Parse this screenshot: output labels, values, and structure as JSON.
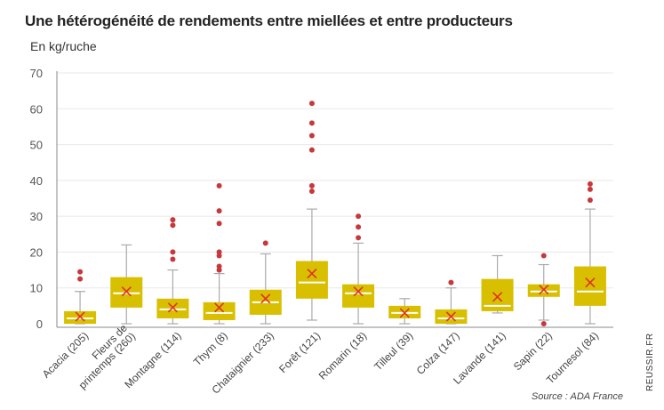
{
  "title": "Une hétérogénéité de rendements entre miellées et entre producteurs",
  "unit_label": "En kg/ruche",
  "source": "Source : ADA France",
  "brand": "REUSSIR.FR",
  "colors": {
    "box": "#d8bf00",
    "median": "#ffffff",
    "mean": "#e0302a",
    "outlier": "#c8373a",
    "whisker": "#aaaaaa",
    "grid": "#e8e8e8",
    "axis": "#888888"
  },
  "chart_data": {
    "type": "boxplot",
    "title": "Une hétérogénéité de rendements entre miellées et entre producteurs",
    "ylabel": "En kg/ruche",
    "ylim": [
      0,
      70
    ],
    "yticks": [
      0,
      10,
      20,
      30,
      40,
      50,
      60,
      70
    ],
    "grid": true,
    "categories": [
      {
        "label": "Acacia (205)",
        "min": 0,
        "q1": 0,
        "median": 1.5,
        "q3": 3.5,
        "max": 9,
        "mean": 2,
        "outliers": [
          12.5,
          14.5
        ]
      },
      {
        "label": "Fleurs de printemps (260)",
        "min": 0,
        "q1": 4.5,
        "median": 8.5,
        "q3": 13,
        "max": 22,
        "mean": 9,
        "outliers": []
      },
      {
        "label": "Montagne (114)",
        "min": 0,
        "q1": 1.5,
        "median": 4,
        "q3": 7,
        "max": 15,
        "mean": 4.5,
        "outliers": [
          18,
          20,
          27.5,
          29
        ]
      },
      {
        "label": "Thym (8)",
        "min": 0,
        "q1": 1,
        "median": 3,
        "q3": 6,
        "max": 14,
        "mean": 4.5,
        "outliers": [
          15,
          16,
          19,
          20,
          28,
          31.5,
          38.5
        ]
      },
      {
        "label": "Chataignier (233)",
        "min": 0,
        "q1": 2.5,
        "median": 6,
        "q3": 9.5,
        "max": 19.5,
        "mean": 7,
        "outliers": [
          22.5
        ]
      },
      {
        "label": "Forêt (121)",
        "min": 1,
        "q1": 7,
        "median": 11.5,
        "q3": 17.5,
        "max": 32,
        "mean": 14,
        "outliers": [
          37,
          38.5,
          48.5,
          52.5,
          56,
          61.5
        ]
      },
      {
        "label": "Romarin (18)",
        "min": 0,
        "q1": 4.5,
        "median": 8.5,
        "q3": 11,
        "max": 22.5,
        "mean": 9,
        "outliers": [
          24,
          27,
          30
        ]
      },
      {
        "label": "Tilleul (39)",
        "min": 0,
        "q1": 1.5,
        "median": 3,
        "q3": 5,
        "max": 7,
        "mean": 3,
        "outliers": []
      },
      {
        "label": "Colza (147)",
        "min": 0,
        "q1": 0,
        "median": 1.5,
        "q3": 4,
        "max": 10,
        "mean": 2,
        "outliers": [
          11.5
        ]
      },
      {
        "label": "Lavande (141)",
        "min": 3,
        "q1": 3.5,
        "median": 5,
        "q3": 12.5,
        "max": 19,
        "mean": 7.5,
        "outliers": []
      },
      {
        "label": "Sapin (22)",
        "min": 1,
        "q1": 7.5,
        "median": 9,
        "q3": 11,
        "max": 16.5,
        "mean": 9.5,
        "outliers": [
          0,
          19
        ]
      },
      {
        "label": "Tournesol (84)",
        "min": 0,
        "q1": 5,
        "median": 9,
        "q3": 16,
        "max": 32,
        "mean": 11.5,
        "outliers": [
          34.5,
          37.5,
          39
        ]
      }
    ]
  }
}
